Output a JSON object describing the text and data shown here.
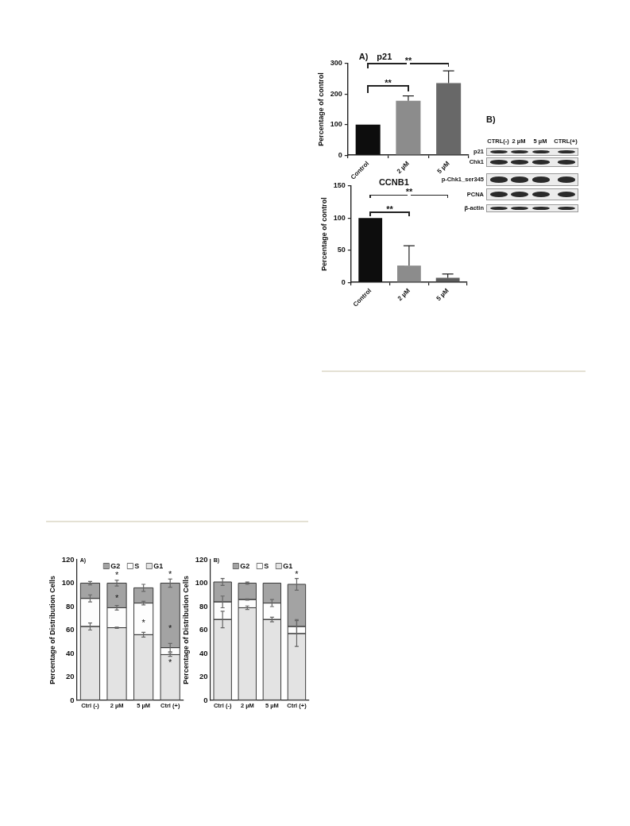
{
  "chart_data": [
    {
      "type": "bar",
      "title": "p21",
      "ylabel": "Percentage of control",
      "categories": [
        "Control",
        "2 µM",
        "5 µM"
      ],
      "values": [
        100,
        178,
        236
      ],
      "colors": [
        "#0d0d0d",
        "#8c8c8c",
        "#686868"
      ],
      "errors": [
        null,
        [
          178,
          194
        ],
        [
          236,
          276
        ]
      ],
      "ylim": [
        0,
        300
      ],
      "yticks": [
        0,
        100,
        200,
        300
      ],
      "annotations": [
        "A)",
        "**",
        "**"
      ]
    },
    {
      "type": "bar",
      "title": "CCNB1",
      "ylabel": "Percentage of control",
      "categories": [
        "Control",
        "2 µM",
        "5 µM"
      ],
      "values": [
        100,
        26,
        7
      ],
      "colors": [
        "#0d0d0d",
        "#8c8c8c",
        "#5c5c5c"
      ],
      "errors": [
        null,
        [
          26,
          57
        ],
        [
          7,
          13
        ]
      ],
      "ylim": [
        0,
        150
      ],
      "yticks": [
        0,
        50,
        100,
        150
      ],
      "annotations": [
        "**",
        "**"
      ]
    },
    {
      "type": "other",
      "title": "B)",
      "categories": [
        "CTRL(-)",
        "2 µM",
        "5 µM",
        "CTRL(+)"
      ],
      "y_categories": [
        "p21",
        "Chk1",
        "p-Chk1_ser345",
        "PCNA",
        "β-actin"
      ]
    },
    {
      "type": "bar",
      "stacked": true,
      "ylabel": "Percentage of Distribution Cells",
      "categories": [
        "Ctrl (-)",
        "2 µM",
        "5 µM",
        "Ctrl (+)"
      ],
      "series": [
        {
          "name": "G1",
          "color": "#e3e3e3",
          "values": [
            63,
            62,
            56,
            39
          ],
          "errors": [
            3,
            0.5,
            2,
            1.5
          ]
        },
        {
          "name": "S",
          "color": "#fdfdfd",
          "values": [
            24,
            17,
            27,
            6
          ],
          "errors": [
            3,
            2,
            1.5,
            3.5
          ]
        },
        {
          "name": "G2",
          "color": "#a3a3a3",
          "values": [
            13,
            21,
            13,
            55
          ],
          "errors": [
            1.5,
            2.5,
            3,
            3.5
          ]
        }
      ],
      "ylim": [
        0,
        120
      ],
      "yticks": [
        0,
        20,
        40,
        60,
        80,
        100,
        120
      ],
      "legend": "top",
      "annotations": [
        "A)",
        "*",
        "*",
        "*",
        "*",
        "*",
        "*"
      ]
    },
    {
      "type": "bar",
      "stacked": true,
      "ylabel": "Percentage of Distribution Cells",
      "categories": [
        "Ctrl (-)",
        "2 µM",
        "5 µM",
        "Ctrl (+)"
      ],
      "series": [
        {
          "name": "G1",
          "color": "#e3e3e3",
          "values": [
            69,
            79,
            69,
            57
          ],
          "errors": [
            7,
            1.5,
            2,
            11
          ]
        },
        {
          "name": "S",
          "color": "#fdfdfd",
          "values": [
            15,
            7,
            14,
            6
          ],
          "errors": [
            5,
            0.5,
            3,
            6
          ]
        },
        {
          "name": "G2",
          "color": "#a3a3a3",
          "values": [
            17,
            14,
            17,
            36
          ],
          "errors": [
            3,
            1,
            null,
            5
          ]
        }
      ],
      "ylim": [
        0,
        120
      ],
      "yticks": [
        0,
        20,
        40,
        60,
        80,
        100,
        120
      ],
      "legend": "top",
      "annotations": [
        "B)",
        "*"
      ]
    }
  ]
}
